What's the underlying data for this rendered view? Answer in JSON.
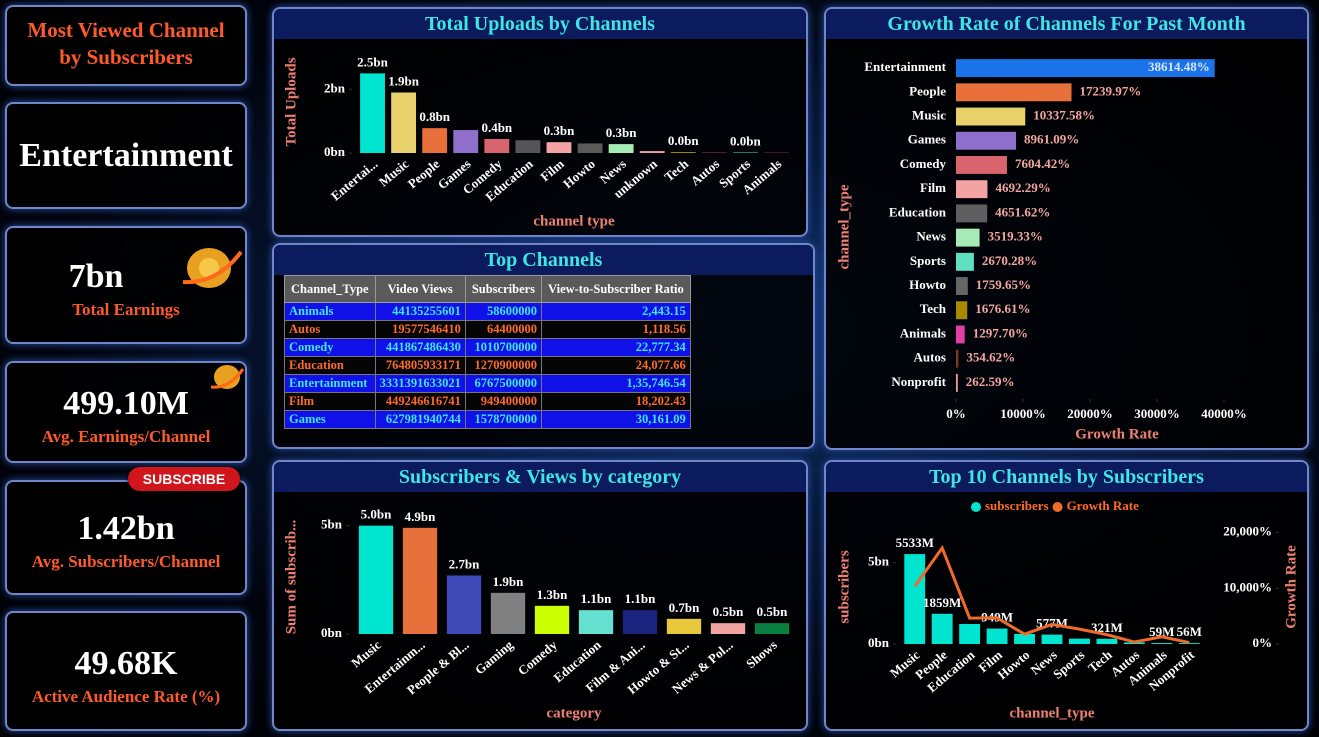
{
  "kpi": {
    "heading": "Most Viewed Channel by Subscribers",
    "top_category": "Entertainment",
    "button": "SUBSCRIBE",
    "cards": [
      {
        "value": "7bn",
        "label": "Total Earnings"
      },
      {
        "value": "499.10M",
        "label": "Avg. Earnings/Channel"
      },
      {
        "value": "1.42bn",
        "label": "Avg. Subscribers/Channel"
      },
      {
        "value": "49.68K",
        "label": "Active Audience Rate (%)"
      }
    ]
  },
  "table": {
    "title": "Top Channels",
    "columns": [
      "Channel_Type",
      "Video Views",
      "Subscribers",
      "View-to-Subscriber Ratio"
    ],
    "rows": [
      [
        "Animals",
        "44135255601",
        "58600000",
        "2,443.15"
      ],
      [
        "Autos",
        "19577546410",
        "64400000",
        "1,118.56"
      ],
      [
        "Comedy",
        "441867486430",
        "1010700000",
        "22,777.34"
      ],
      [
        "Education",
        "764805933171",
        "1270900000",
        "24,077.66"
      ],
      [
        "Entertainment",
        "3331391633021",
        "6767500000",
        "1,35,746.54"
      ],
      [
        "Film",
        "449246616741",
        "949400000",
        "18,202.43"
      ],
      [
        "Games",
        "627981940744",
        "1578700000",
        "30,161.09"
      ]
    ]
  },
  "chart_data": [
    {
      "type": "bar",
      "title": "Total Uploads by Channels",
      "x_label": "channel  type",
      "y_label": "Total Uploads",
      "categories": [
        "Entertai...",
        "Music",
        "People",
        "Games",
        "Comedy",
        "Education",
        "Film",
        "Howto",
        "News",
        "unknown",
        "Tech",
        "Autos",
        "Sports",
        "Animals"
      ],
      "values": [
        2.5,
        1.9,
        0.78,
        0.72,
        0.44,
        0.4,
        0.34,
        0.3,
        0.28,
        0.06,
        0.03,
        0.02,
        0.02,
        0.01
      ],
      "value_labels": [
        "2.5bn",
        "1.9bn",
        "0.8bn",
        null,
        "0.4bn",
        null,
        "0.3bn",
        null,
        "0.3bn",
        null,
        "0.0bn",
        null,
        "0.0bn",
        null
      ],
      "colors": [
        "#00e5d0",
        "#e8d06a",
        "#e8703a",
        "#8f6fcc",
        "#d9646e",
        "#555555",
        "#f4a3a3",
        "#5a5a5a",
        "#a6eab5",
        "#f0a0a0",
        "#a88a00",
        "#7a3a20",
        "#3cb8a0",
        "#c03f94"
      ],
      "ylim": [
        0,
        2.7
      ],
      "yticks": [
        {
          "value": 0,
          "label": "0bn"
        },
        {
          "value": 2,
          "label": "2bn"
        }
      ]
    },
    {
      "type": "barh",
      "title": "Growth Rate of Channels For Past Month",
      "x_label": "Growth Rate",
      "y_label": "channel_type",
      "categories": [
        "Entertainment",
        "People",
        "Music",
        "Games",
        "Comedy",
        "Film",
        "Education",
        "News",
        "Sports",
        "Howto",
        "Tech",
        "Animals",
        "Autos",
        "Nonprofit"
      ],
      "values": [
        38614.48,
        17239.97,
        10337.58,
        8961.09,
        7604.42,
        4692.29,
        4651.62,
        3519.33,
        2670.28,
        1759.65,
        1676.61,
        1297.7,
        354.62,
        262.59
      ],
      "value_labels": [
        "38614.48%",
        "17239.97%",
        "10337.58%",
        "8961.09%",
        "7604.42%",
        "4692.29%",
        "4651.62%",
        "3519.33%",
        "2670.28%",
        "1759.65%",
        "1676.61%",
        "1297.70%",
        "354.62%",
        "262.59%"
      ],
      "colors": [
        "#1a73e8",
        "#e8703a",
        "#e8d06a",
        "#8f6fcc",
        "#d9646e",
        "#f4a3a3",
        "#5f5f5f",
        "#a6eab5",
        "#5fe0c0",
        "#666666",
        "#a88a00",
        "#e03fa4",
        "#7a3a20",
        "#f0a0a0"
      ],
      "xlim": [
        0,
        40000
      ],
      "xticks": [
        {
          "value": 0,
          "label": "0%"
        },
        {
          "value": 10000,
          "label": "10000%"
        },
        {
          "value": 20000,
          "label": "20000%"
        },
        {
          "value": 30000,
          "label": "30000%"
        },
        {
          "value": 40000,
          "label": "40000%"
        }
      ]
    },
    {
      "type": "bar",
      "title": "Subscribers & Views by category",
      "x_label": "category",
      "y_label": "Sum of subscrib...",
      "categories": [
        "Music",
        "Entertainm...",
        "People & Bl...",
        "Gaming",
        "Comedy",
        "Education",
        "Film & Ani...",
        "Howto & St...",
        "News & Pol...",
        "Shows"
      ],
      "values": [
        5.0,
        4.9,
        2.7,
        1.9,
        1.3,
        1.1,
        1.1,
        0.7,
        0.5,
        0.5
      ],
      "value_labels": [
        "5.0bn",
        "4.9bn",
        "2.7bn",
        "1.9bn",
        "1.3bn",
        "1.1bn",
        "1.1bn",
        "0.7bn",
        "0.5bn",
        "0.5bn"
      ],
      "colors": [
        "#00e5d0",
        "#e8703a",
        "#3f4ab8",
        "#808080",
        "#ccff00",
        "#66e0d0",
        "#1a237e",
        "#e8c83a",
        "#f4a3a3",
        "#0a8040"
      ],
      "ylim": [
        0,
        5.4
      ],
      "yticks": [
        {
          "value": 0,
          "label": "0bn"
        },
        {
          "value": 5,
          "label": "5bn"
        }
      ]
    },
    {
      "type": "combo",
      "title": "Top 10 Channels by Subscribers",
      "x_label": "channel_type",
      "y_label": "subscribers",
      "y2_label": "Growth Rate",
      "categories": [
        "Music",
        "People",
        "Education",
        "Film",
        "Howto",
        "News",
        "Sports",
        "Tech",
        "Autos",
        "Animals",
        "Nonprofit"
      ],
      "series": [
        {
          "name": "subscribers",
          "color": "#00e5d0",
          "values": [
            5.533,
            1.859,
            1.23,
            0.949,
            0.62,
            0.577,
            0.33,
            0.321,
            0.1,
            0.059,
            0.056
          ],
          "value_labels": [
            "5533M",
            "1859M",
            null,
            "949M",
            null,
            "577M",
            null,
            "321M",
            null,
            "59M",
            "56M"
          ]
        },
        {
          "name": "Growth Rate",
          "color": "#f06a2a",
          "axis": "y2",
          "values": [
            10337.58,
            17239.97,
            4651.62,
            4692.29,
            1759.65,
            3519.33,
            2670.28,
            1676.61,
            354.62,
            1297.7,
            262.59
          ]
        }
      ],
      "ylim": [
        0,
        7.2
      ],
      "yticks": [
        {
          "value": 0,
          "label": "0bn"
        },
        {
          "value": 5,
          "label": "5bn"
        }
      ],
      "y2lim": [
        0,
        21000
      ],
      "y2ticks": [
        {
          "value": 0,
          "label": "0%"
        },
        {
          "value": 10000,
          "label": "10,000%"
        },
        {
          "value": 20000,
          "label": "20,000%"
        }
      ]
    }
  ]
}
